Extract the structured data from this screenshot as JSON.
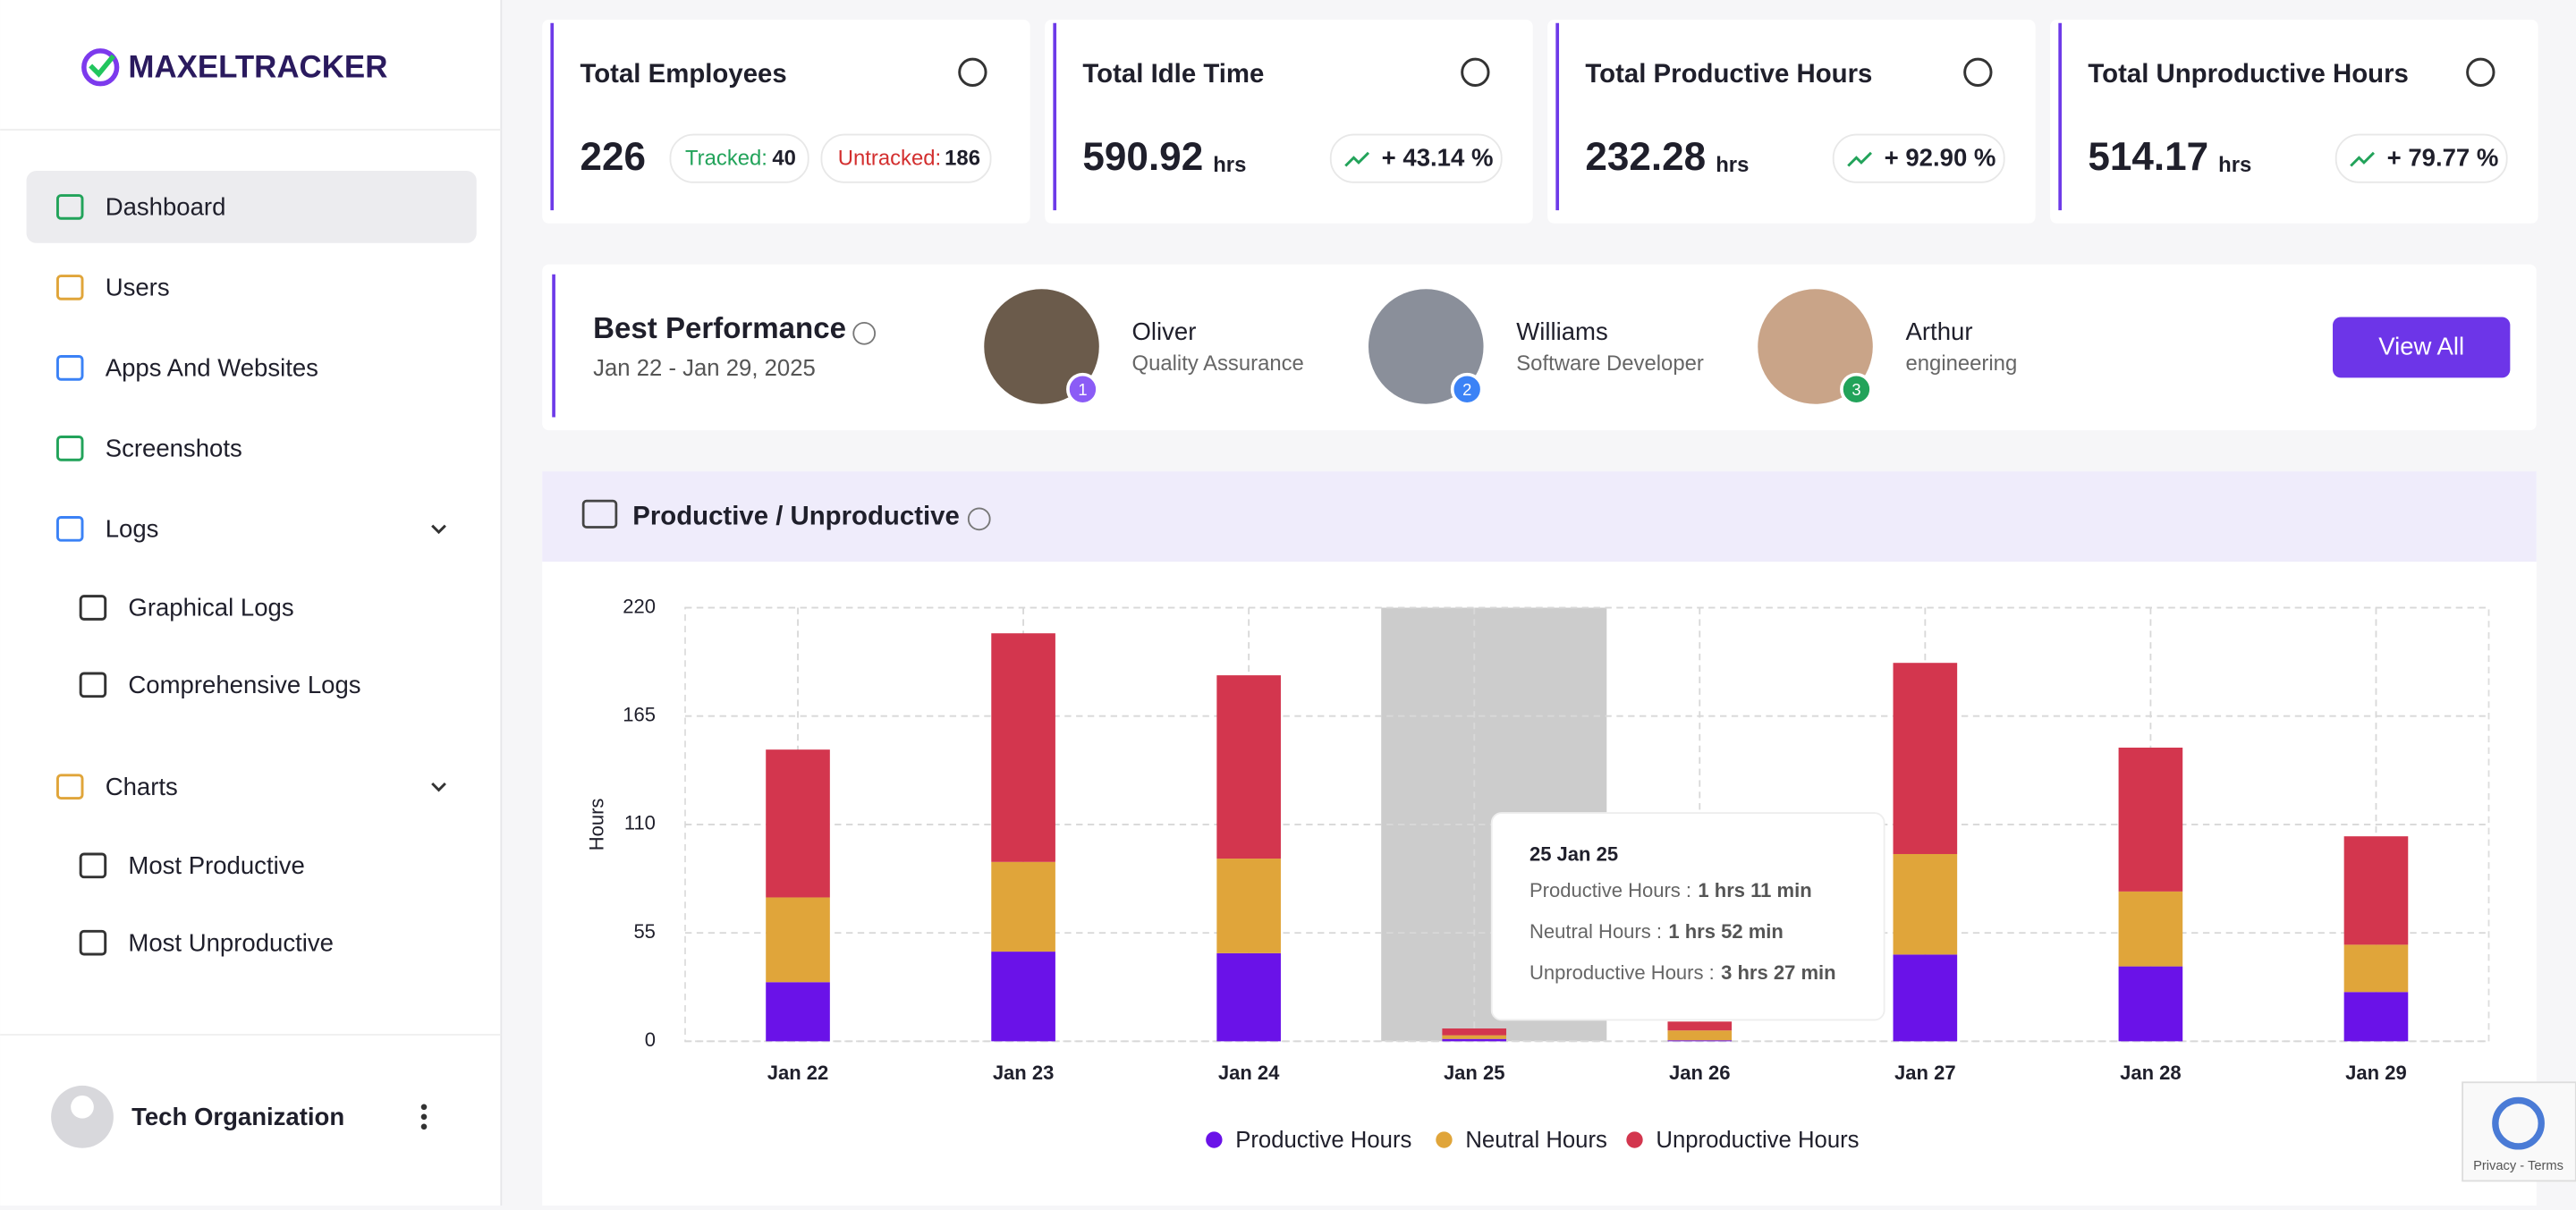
{
  "sidebar": {
    "logo": "MAXELTRACKER",
    "menu": [
      "Dashboard",
      "Users",
      "Apps And Websites",
      "Screenshots",
      "Logs",
      "Graphical Logs",
      "Comprehensive Logs",
      "Charts",
      "Most Productive",
      "Most Unproductive"
    ],
    "organization": "Tech Organization"
  },
  "cards": [
    {
      "title": "Total Employees",
      "value": "226",
      "tracked_label": "Tracked:",
      "tracked": "40",
      "untracked_label": "Untracked:",
      "untracked": "186"
    },
    {
      "title": "Total Idle Time",
      "value": "590.92",
      "unit": "hrs",
      "change": "+ 43.14 %"
    },
    {
      "title": "Total Productive Hours",
      "value": "232.28",
      "unit": "hrs",
      "change": "+ 92.90 %"
    },
    {
      "title": "Total Unproductive Hours",
      "value": "514.17",
      "unit": "hrs",
      "change": "+ 79.77 %"
    }
  ],
  "best_performance": {
    "title": "Best Performance",
    "dates": "Jan 22 - Jan 29, 2025",
    "people": [
      {
        "rank": "1",
        "name": "Oliver",
        "role": "Quality Assurance"
      },
      {
        "rank": "2",
        "name": "Williams",
        "role": "Software Developer"
      },
      {
        "rank": "3",
        "name": "Arthur",
        "role": "engineering"
      }
    ],
    "button": "View All"
  },
  "panel_title": "Productive / Unproductive",
  "chart_data": {
    "type": "stacked-bar",
    "y_label": "Hours",
    "categories": [
      "Jan 22",
      "Jan 23",
      "Jan 24",
      "Jan 25",
      "Jan 26",
      "Jan 27",
      "Jan 28",
      "Jan 29"
    ],
    "series": [
      {
        "name": "Productive Hours",
        "color": "#6a12e8",
        "values": [
          30,
          45.5,
          44.7,
          1.18,
          0.5,
          44,
          38,
          25
        ]
      },
      {
        "name": "Neutral Hours",
        "color": "#e0a53a",
        "values": [
          43,
          45.5,
          48,
          1.87,
          5,
          51,
          38,
          24
        ]
      },
      {
        "name": "Unproductive Hours",
        "color": "#d3364e",
        "values": [
          75,
          116,
          93,
          3.45,
          4.5,
          97,
          73,
          55
        ]
      }
    ],
    "ylim": [
      0,
      220
    ],
    "yticks": [
      0,
      55,
      110,
      165,
      220
    ],
    "grid": true,
    "legend": "bottom",
    "highlight": "Jan 25",
    "tooltip": {
      "title": "25 Jan 25",
      "rows": [
        {
          "label": "Productive Hours :",
          "value": "1 hrs 11 min"
        },
        {
          "label": "Neutral Hours :",
          "value": "1 hrs 52 min"
        },
        {
          "label": "Unproductive Hours :",
          "value": "3 hrs 27 min"
        }
      ]
    }
  },
  "recaptcha": "Privacy - Terms"
}
